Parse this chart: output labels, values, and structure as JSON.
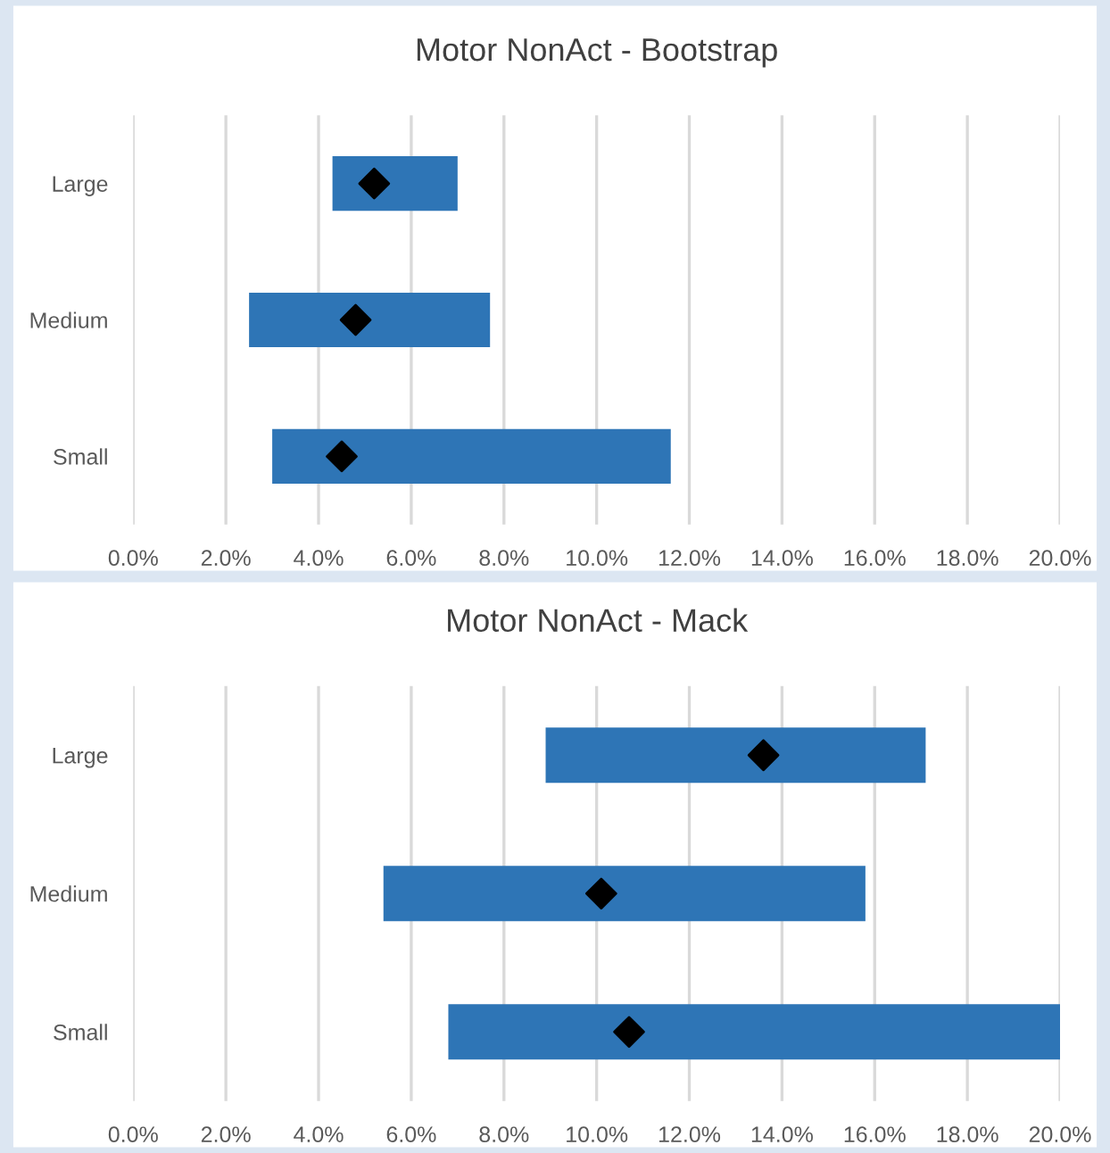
{
  "chart_data": [
    {
      "type": "bar",
      "orientation": "horizontal",
      "title": "Motor NonAct - Bootstrap",
      "categories": [
        "Large",
        "Medium",
        "Small"
      ],
      "grid": "x",
      "series": [
        {
          "color": "#2e75b6",
          "base": [
            4.3,
            2.5,
            3.0
          ],
          "values": [
            2.7,
            5.2,
            8.6
          ]
        },
        {
          "type": "scatter",
          "marker": "diamond",
          "color": "#000000",
          "x": [
            "Large",
            "Medium",
            "Small"
          ],
          "values": [
            5.2,
            4.8,
            4.5
          ]
        }
      ],
      "xlim": [
        0,
        20
      ],
      "xticks": [
        {
          "value": 0,
          "label": "0.0%"
        },
        {
          "value": 2,
          "label": "2.0%"
        },
        {
          "value": 4,
          "label": "4.0%"
        },
        {
          "value": 6,
          "label": "6.0%"
        },
        {
          "value": 8,
          "label": "8.0%"
        },
        {
          "value": 10,
          "label": "10.0%"
        },
        {
          "value": 12,
          "label": "12.0%"
        },
        {
          "value": 14,
          "label": "14.0%"
        },
        {
          "value": 16,
          "label": "16.0%"
        },
        {
          "value": 18,
          "label": "18.0%"
        },
        {
          "value": 20,
          "label": "20.0%"
        }
      ]
    },
    {
      "type": "bar",
      "orientation": "horizontal",
      "title": "Motor NonAct - Mack",
      "categories": [
        "Large",
        "Medium",
        "Small"
      ],
      "grid": "x",
      "series": [
        {
          "color": "#2e75b6",
          "base": [
            8.9,
            5.4,
            6.8
          ],
          "values": [
            8.2,
            10.4,
            13.2
          ]
        },
        {
          "type": "scatter",
          "marker": "diamond",
          "color": "#000000",
          "x": [
            "Large",
            "Medium",
            "Small"
          ],
          "values": [
            13.6,
            10.1,
            10.7
          ]
        }
      ],
      "xlim": [
        0,
        20
      ],
      "xticks": [
        {
          "value": 0,
          "label": "0.0%"
        },
        {
          "value": 2,
          "label": "2.0%"
        },
        {
          "value": 4,
          "label": "4.0%"
        },
        {
          "value": 6,
          "label": "6.0%"
        },
        {
          "value": 8,
          "label": "8.0%"
        },
        {
          "value": 10,
          "label": "10.0%"
        },
        {
          "value": 12,
          "label": "12.0%"
        },
        {
          "value": 14,
          "label": "14.0%"
        },
        {
          "value": 16,
          "label": "16.0%"
        },
        {
          "value": 18,
          "label": "18.0%"
        },
        {
          "value": 20,
          "label": "20.0%"
        }
      ]
    }
  ]
}
